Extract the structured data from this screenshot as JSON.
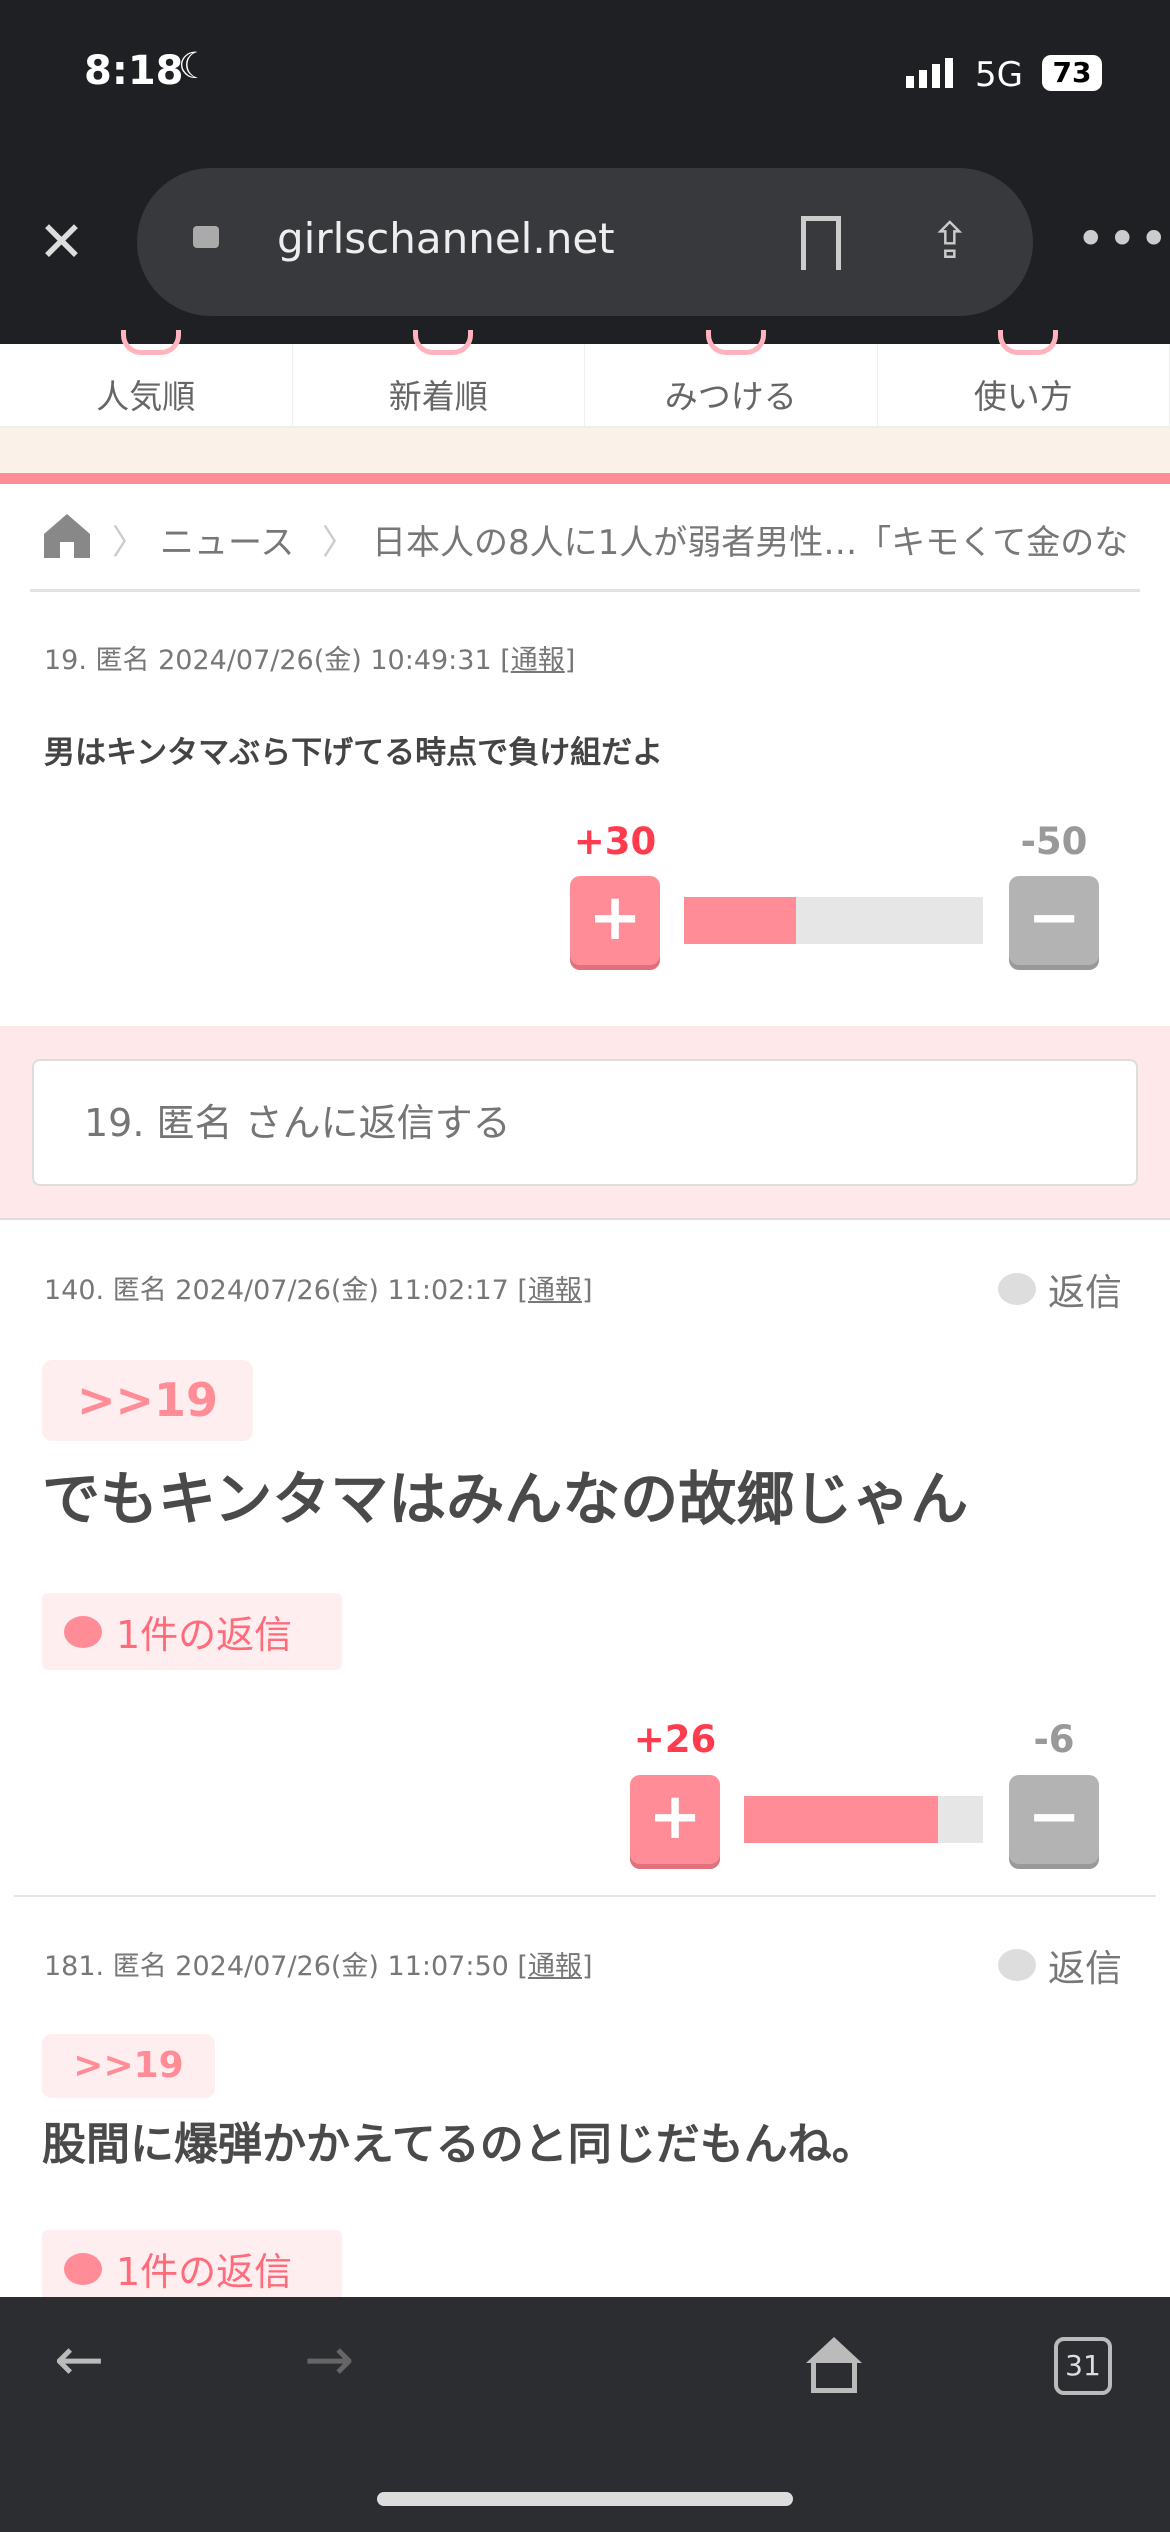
{
  "status": {
    "time": "8:18",
    "network": "5G",
    "battery": "73"
  },
  "browser": {
    "url": "girlschannel.net",
    "tab_count": "31"
  },
  "tabs": [
    "人気順",
    "新着順",
    "みつける",
    "使い方"
  ],
  "breadcrumb": {
    "items": [
      "ニュース",
      "日本人の8人に1人が弱者男性…「キモくて金のな"
    ]
  },
  "comments": [
    {
      "meta": "19. 匿名 2024/07/26(金) 10:49:31 [",
      "report": "通報",
      "meta_end": "]",
      "body": "男はキンタマぶら下げてる時点で負け組だよ",
      "plus": "+30",
      "minus": "-50",
      "plus_share": 0.375
    },
    {
      "meta": "140. 匿名 2024/07/26(金) 11:02:17 [",
      "report": "通報",
      "meta_end": "]",
      "reply_label": "返信",
      "anchor": ">>19",
      "body": "でもキンタマはみんなの故郷じゃん",
      "replies": "1件の返信",
      "plus": "+26",
      "minus": "-6",
      "plus_share": 0.8125
    },
    {
      "meta": "181. 匿名 2024/07/26(金) 11:07:50 [",
      "report": "通報",
      "meta_end": "]",
      "reply_label": "返信",
      "anchor": ">>19",
      "body": "股間に爆弾かかえてるのと同じだもんね。",
      "replies": "1件の返信"
    }
  ],
  "reply_box": {
    "placeholder": "19. 匿名 さんに返信する"
  },
  "colors": {
    "accent": "#ff8c96",
    "plus_label": "#ff3b4e",
    "minus_label": "#999999"
  }
}
